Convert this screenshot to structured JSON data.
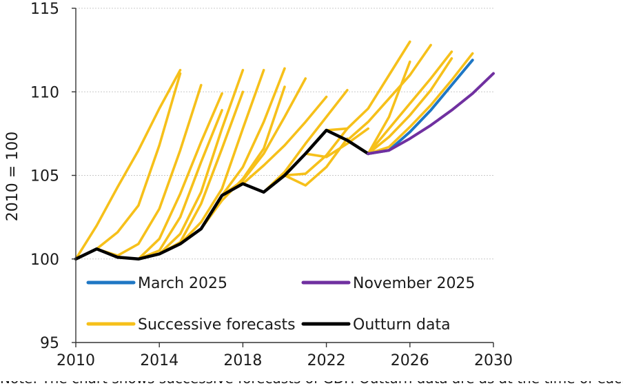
{
  "chart_data": {
    "type": "line",
    "title": "",
    "xlabel": "",
    "ylabel": "2010 = 100",
    "xlim": [
      2010,
      2030
    ],
    "ylim": [
      95,
      115
    ],
    "x_ticks": [
      "2010",
      "2014",
      "2018",
      "2022",
      "2026",
      "2030"
    ],
    "y_ticks": [
      "95",
      "100",
      "105",
      "110",
      "115"
    ],
    "grid": "horizontal",
    "legend": {
      "placement": "inside-bottom",
      "entries": [
        {
          "name": "March 2025",
          "color": "#1f77c4"
        },
        {
          "name": "November 2025",
          "color": "#7030a0"
        },
        {
          "name": "Successive forecasts",
          "color": "#f6c01a"
        },
        {
          "name": "Outturn data",
          "color": "#000000"
        }
      ]
    },
    "successive_forecasts": [
      {
        "x": [
          2010,
          2011,
          2012,
          2013,
          2014,
          2015
        ],
        "y": [
          100,
          102.0,
          104.3,
          106.5,
          109.0,
          111.3
        ]
      },
      {
        "x": [
          2010,
          2011,
          2012,
          2013,
          2014,
          2015
        ],
        "y": [
          100,
          100.6,
          101.6,
          103.2,
          106.8,
          111.1
        ]
      },
      {
        "x": [
          2011,
          2012,
          2013,
          2014,
          2015,
          2016
        ],
        "y": [
          100.6,
          100.2,
          100.9,
          103.0,
          106.5,
          110.4
        ]
      },
      {
        "x": [
          2012,
          2013,
          2014,
          2015,
          2016,
          2017
        ],
        "y": [
          100.1,
          100.0,
          101.2,
          103.9,
          107.0,
          109.9
        ]
      },
      {
        "x": [
          2013,
          2014,
          2015,
          2016,
          2017
        ],
        "y": [
          100.0,
          100.5,
          102.5,
          105.8,
          108.9
        ]
      },
      {
        "x": [
          2014,
          2015,
          2016,
          2017,
          2018
        ],
        "y": [
          100.3,
          101.5,
          104.0,
          107.8,
          111.3
        ]
      },
      {
        "x": [
          2014,
          2015,
          2016,
          2017,
          2018
        ],
        "y": [
          100.3,
          101.0,
          103.3,
          106.6,
          110.0
        ]
      },
      {
        "x": [
          2015,
          2016,
          2017,
          2018,
          2019
        ],
        "y": [
          100.9,
          102.2,
          104.2,
          107.8,
          111.3
        ]
      },
      {
        "x": [
          2016,
          2017,
          2018,
          2019,
          2020
        ],
        "y": [
          101.8,
          103.8,
          105.5,
          108.2,
          111.4
        ]
      },
      {
        "x": [
          2016,
          2017,
          2018,
          2019,
          2020
        ],
        "y": [
          101.8,
          103.5,
          104.8,
          106.6,
          110.3
        ]
      },
      {
        "x": [
          2017,
          2018,
          2019,
          2020,
          2021
        ],
        "y": [
          103.8,
          104.7,
          106.3,
          108.5,
          110.8
        ]
      },
      {
        "x": [
          2018,
          2019,
          2020,
          2021,
          2022
        ],
        "y": [
          104.5,
          105.6,
          106.8,
          108.2,
          109.7
        ]
      },
      {
        "x": [
          2019,
          2020,
          2021,
          2022,
          2023
        ],
        "y": [
          104.0,
          105.2,
          106.9,
          108.5,
          110.1
        ]
      },
      {
        "x": [
          2020,
          2021,
          2022,
          2023
        ],
        "y": [
          105.0,
          104.4,
          105.5,
          107.2
        ]
      },
      {
        "x": [
          2020,
          2021,
          2022,
          2023
        ],
        "y": [
          105.0,
          105.1,
          106.2,
          107.8
        ]
      },
      {
        "x": [
          2021,
          2022,
          2023,
          2024
        ],
        "y": [
          106.3,
          106.1,
          106.9,
          107.8
        ]
      },
      {
        "x": [
          2022,
          2023,
          2024,
          2025,
          2026
        ],
        "y": [
          107.7,
          107.8,
          109.0,
          111.0,
          113.0
        ]
      },
      {
        "x": [
          2023,
          2024,
          2025,
          2026,
          2027
        ],
        "y": [
          107.1,
          108.2,
          109.6,
          111.0,
          112.8
        ]
      },
      {
        "x": [
          2024,
          2025,
          2026,
          2027,
          2028
        ],
        "y": [
          106.3,
          107.8,
          109.3,
          110.8,
          112.4
        ]
      },
      {
        "x": [
          2024,
          2025,
          2026,
          2027,
          2028
        ],
        "y": [
          106.3,
          107.3,
          108.6,
          110.1,
          112.0
        ]
      },
      {
        "x": [
          2024,
          2025,
          2026,
          2027,
          2028,
          2029
        ],
        "y": [
          106.3,
          106.7,
          107.9,
          109.2,
          110.7,
          112.3
        ]
      },
      {
        "x": [
          2024,
          2025,
          2026
        ],
        "y": [
          106.3,
          108.5,
          111.8
        ]
      }
    ],
    "series": [
      {
        "name": "Outturn data",
        "x": [
          2010,
          2011,
          2012,
          2013,
          2014,
          2015,
          2016,
          2017,
          2018,
          2019,
          2020,
          2021,
          2022,
          2023,
          2024
        ],
        "y": [
          100.0,
          100.6,
          100.1,
          100.0,
          100.3,
          100.9,
          101.8,
          103.8,
          104.5,
          104.0,
          105.0,
          106.3,
          107.7,
          107.1,
          106.3
        ]
      },
      {
        "name": "March 2025",
        "x": [
          2024,
          2025,
          2026,
          2027,
          2028,
          2029
        ],
        "y": [
          106.3,
          106.5,
          107.6,
          108.9,
          110.4,
          111.9
        ]
      },
      {
        "name": "November 2025",
        "x": [
          2024,
          2025,
          2026,
          2027,
          2028,
          2029,
          2030
        ],
        "y": [
          106.3,
          106.5,
          107.2,
          108.0,
          108.9,
          109.9,
          111.1
        ]
      }
    ]
  },
  "footnote": "Note: The chart shows successive forecasts of GDP. Outturn data are as at the time of each forecast."
}
